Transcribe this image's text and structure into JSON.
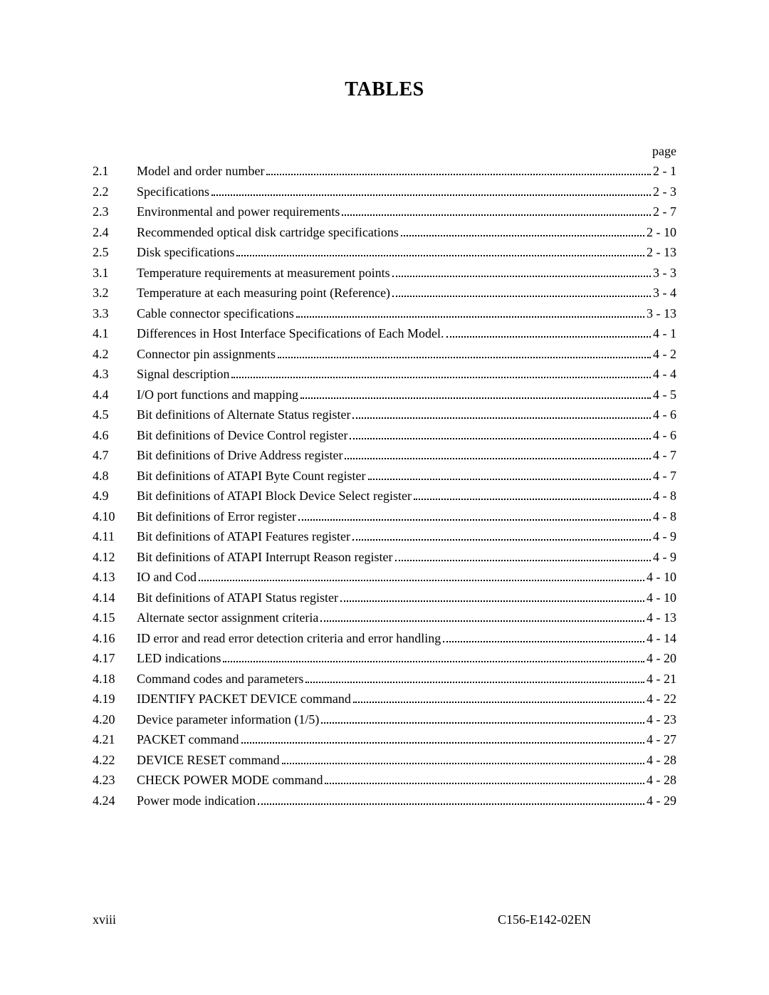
{
  "heading": "TABLES",
  "page_label": "page",
  "footer": {
    "roman": "xviii",
    "doc_id": "C156-E142-02EN"
  },
  "entries": [
    {
      "num": "2.1",
      "title": "Model and order number",
      "page": "2 - 1"
    },
    {
      "num": "2.2",
      "title": "Specifications",
      "page": "2 - 3"
    },
    {
      "num": "2.3",
      "title": "Environmental and power requirements",
      "page": "2 - 7"
    },
    {
      "num": "2.4",
      "title": "Recommended optical disk cartridge specifications",
      "page": "2 - 10"
    },
    {
      "num": "2.5",
      "title": "Disk specifications",
      "page": "2 - 13"
    },
    {
      "num": "3.1",
      "title": "Temperature requirements at measurement points",
      "page": "3 - 3"
    },
    {
      "num": "3.2",
      "title": "Temperature at each measuring point (Reference)",
      "page": "3 - 4"
    },
    {
      "num": "3.3",
      "title": "Cable connector specifications",
      "page": "3 - 13"
    },
    {
      "num": "4.1",
      "title": "Differences in Host Interface Specifications of Each Model. ",
      "page": "4 - 1"
    },
    {
      "num": "4.2",
      "title": "Connector pin assignments",
      "page": "4 - 2"
    },
    {
      "num": "4.3",
      "title": "Signal description",
      "page": "4 - 4"
    },
    {
      "num": "4.4",
      "title": "I/O port functions and mapping",
      "page": "4 - 5"
    },
    {
      "num": "4.5",
      "title": "Bit definitions of Alternate Status register",
      "page": "4 - 6"
    },
    {
      "num": "4.6",
      "title": "Bit definitions of Device Control register",
      "page": "4 - 6"
    },
    {
      "num": "4.7",
      "title": "Bit definitions of Drive Address register",
      "page": "4 - 7"
    },
    {
      "num": "4.8",
      "title": "Bit definitions of ATAPI Byte Count register",
      "page": "4 - 7"
    },
    {
      "num": "4.9",
      "title": "Bit definitions of ATAPI Block Device Select register",
      "page": "4 - 8"
    },
    {
      "num": "4.10",
      "title": "Bit definitions of Error register",
      "page": "4 - 8"
    },
    {
      "num": "4.11",
      "title": "Bit definitions of ATAPI Features register",
      "page": "4 - 9"
    },
    {
      "num": "4.12",
      "title": "Bit definitions of ATAPI Interrupt Reason register",
      "page": "4 - 9"
    },
    {
      "num": "4.13",
      "title": "IO and Cod",
      "page": "4 - 10"
    },
    {
      "num": "4.14",
      "title": "Bit definitions of ATAPI Status register",
      "page": "4 - 10"
    },
    {
      "num": "4.15",
      "title": "Alternate sector assignment criteria",
      "page": "4 - 13"
    },
    {
      "num": "4.16",
      "title": "ID error and read error detection criteria and error handling",
      "page": "4 - 14"
    },
    {
      "num": "4.17",
      "title": "LED indications",
      "page": "4 - 20"
    },
    {
      "num": "4.18",
      "title": "Command codes and parameters",
      "page": "4 - 21"
    },
    {
      "num": "4.19",
      "title": "IDENTIFY PACKET DEVICE command",
      "page": "4 - 22"
    },
    {
      "num": "4.20",
      "title": "Device parameter information (1/5)",
      "page": "4 - 23"
    },
    {
      "num": "4.21",
      "title": "PACKET command",
      "page": "4 - 27"
    },
    {
      "num": "4.22",
      "title": "DEVICE RESET command",
      "page": "4 - 28"
    },
    {
      "num": "4.23",
      "title": "CHECK POWER MODE command",
      "page": "4 - 28"
    },
    {
      "num": "4.24",
      "title": "Power mode indication",
      "page": "4 - 29"
    }
  ]
}
